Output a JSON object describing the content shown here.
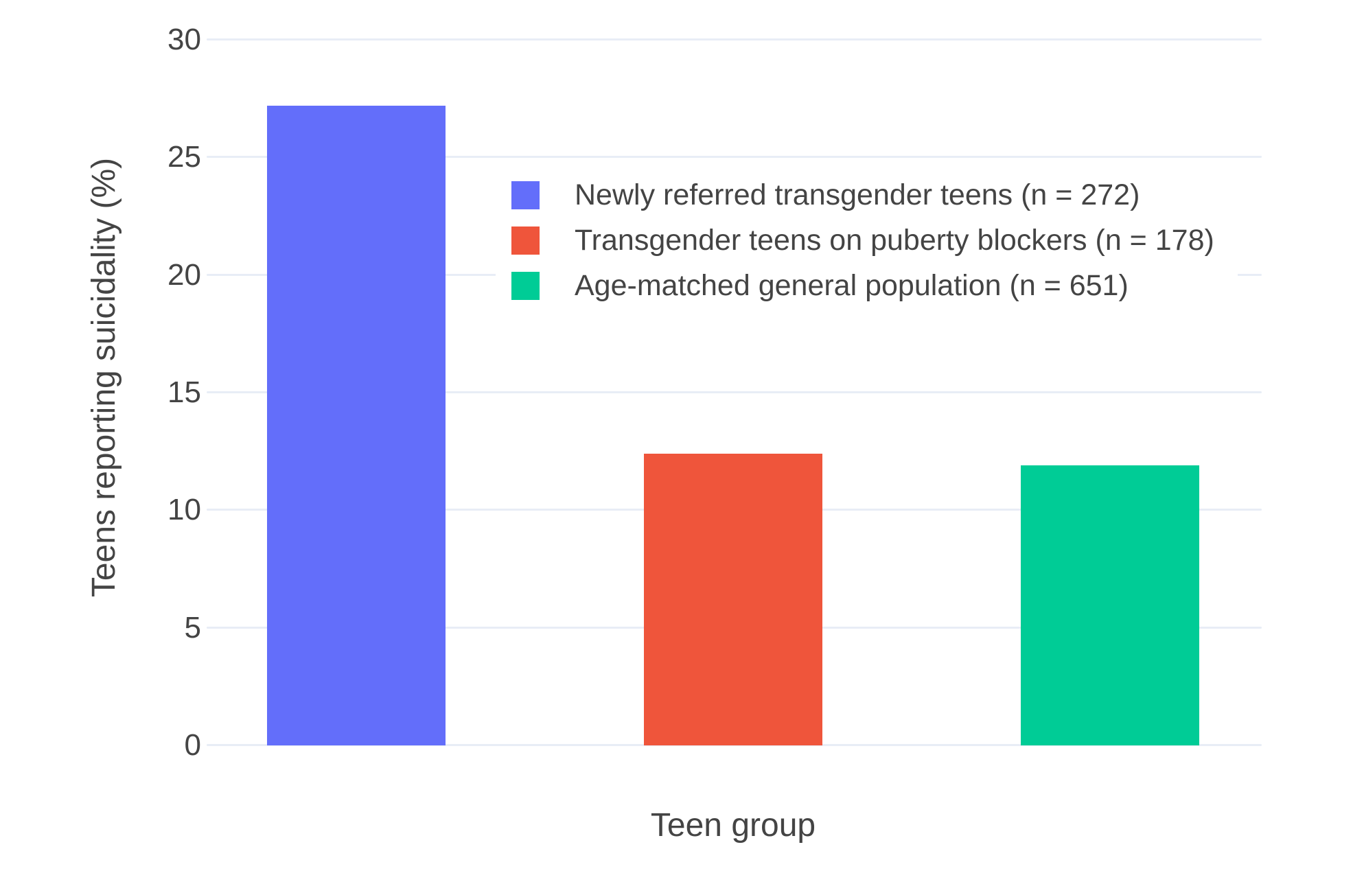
{
  "figure": {
    "background": "#ffffff",
    "text_color": "#444444",
    "grid_color": "#e8edf6"
  },
  "chart_data": {
    "type": "bar",
    "title": "",
    "xlabel": "Teen group",
    "ylabel": "Teens reporting suicidality (%)",
    "categories": [
      "Newly referred transgender teens (n = 272)",
      "Transgender teens on puberty blockers (n = 178)",
      "Age-matched general population (n = 651)"
    ],
    "values": [
      27.2,
      12.4,
      11.9
    ],
    "colors": [
      "#636efa",
      "#ef553b",
      "#00cc96"
    ],
    "ylim": [
      0,
      30
    ],
    "yticks": [
      0,
      5,
      10,
      15,
      20,
      25,
      30
    ],
    "grid": true,
    "legend_position": "inside top, centered over middle of plot",
    "legend": [
      {
        "label": "Newly referred transgender teens (n = 272)",
        "color": "#636efa"
      },
      {
        "label": "Transgender teens on puberty blockers (n = 178)",
        "color": "#ef553b"
      },
      {
        "label": "Age-matched general population (n = 651)",
        "color": "#00cc96"
      }
    ]
  }
}
